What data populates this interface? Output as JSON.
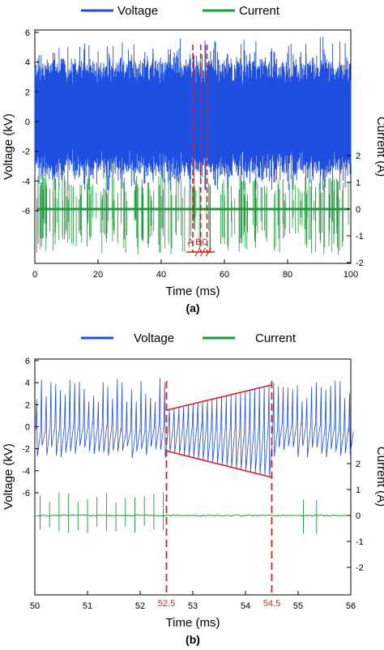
{
  "legend": {
    "voltage": "Voltage",
    "current": "Current"
  },
  "colors": {
    "voltage": "#1f4fe0",
    "current": "#1f9a3a",
    "marker": "#d62020"
  },
  "chart_data": [
    {
      "type": "line",
      "panel_label": "(a)",
      "xlabel": "Time (ms)",
      "ylabel_left": "Voltage (kV)",
      "ylabel_right": "Current (A)",
      "xlim": [
        0,
        100
      ],
      "ylim_left": [
        -10,
        6
      ],
      "ylim_right": [
        -2,
        8
      ],
      "x_ticks": [
        "0",
        "20",
        "40",
        "60",
        "80",
        "100"
      ],
      "y_left_ticks": [
        "6",
        "4",
        "2",
        "0",
        "-2",
        "-4",
        "-6"
      ],
      "y_right_ticks": [
        "2",
        "1",
        "0",
        "-1",
        "-2"
      ],
      "series": [
        {
          "name": "Voltage",
          "axis": "left",
          "x": [
            0,
            100
          ],
          "y_range": [
            -4.5,
            5.8
          ]
        },
        {
          "name": "Current",
          "axis": "right",
          "x": [
            0,
            100
          ],
          "y_range": [
            -1.8,
            1.3
          ]
        }
      ],
      "markers": [
        {
          "label": "A",
          "x": 50
        },
        {
          "label": "B",
          "x": 52.5
        },
        {
          "label": "C",
          "x": 54.5
        }
      ]
    },
    {
      "type": "line",
      "panel_label": "(b)",
      "xlabel": "Time (ms)",
      "ylabel_left": "Voltage (kV)",
      "ylabel_right": "Current (A)",
      "xlim": [
        50,
        56
      ],
      "ylim_left": [
        -10,
        6
      ],
      "ylim_right": [
        -2,
        8
      ],
      "x_ticks": [
        "50",
        "51",
        "52",
        "53",
        "54",
        "55",
        "56"
      ],
      "y_left_ticks": [
        "6",
        "4",
        "2",
        "0",
        "-2",
        "-4",
        "-6"
      ],
      "y_right_ticks": [
        "2",
        "1",
        "0",
        "-1",
        "-2"
      ],
      "series": [
        {
          "name": "Voltage",
          "axis": "left",
          "x": [
            50,
            56
          ],
          "y_range": [
            -4.6,
            4.6
          ]
        },
        {
          "name": "Current",
          "axis": "right",
          "x": [
            50,
            56
          ],
          "y_range": [
            -0.9,
            0.9
          ]
        }
      ],
      "markers": [
        {
          "label": "52.5",
          "x": 52.5
        },
        {
          "label": "54.5",
          "x": 54.5
        }
      ],
      "envelope": {
        "start_x": 52.5,
        "end_x": 54.5,
        "upper_kV": [
          1.5,
          3.8
        ],
        "lower_kV": [
          -2.2,
          -4.6
        ]
      }
    }
  ]
}
